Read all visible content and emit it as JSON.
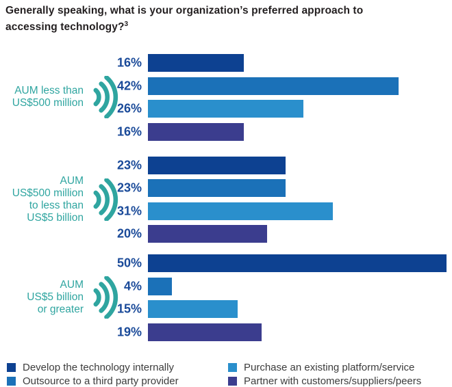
{
  "title": {
    "text": "Generally speaking, what is your organization’s preferred approach to accessing technology?",
    "footnote_marker": "3"
  },
  "colors": {
    "develop_navy": "#0D4191",
    "outsource_blue": "#1B71B8",
    "purchase_light_blue": "#2A8FCC",
    "partner_purple": "#3B3D8E",
    "teal_accent": "#2FA5A0",
    "percent_text": "#1A4A99",
    "title_text": "#231F20",
    "legend_text": "#3C3C3C"
  },
  "chart_data": {
    "type": "bar",
    "orientation": "horizontal",
    "unit": "%",
    "xlim": [
      0,
      51
    ],
    "grid": false,
    "legend_position": "bottom",
    "series_names": [
      "Develop the technology internally",
      "Outsource to a third party provider",
      "Purchase an existing platform/service",
      "Partner with customers/suppliers/peers"
    ],
    "groups": [
      {
        "label_lines": [
          "AUM less than",
          "US$500 million"
        ],
        "values": [
          16,
          42,
          26,
          16
        ],
        "display_values": [
          "16%",
          "42%",
          "26%",
          "16%"
        ]
      },
      {
        "label_lines": [
          "AUM",
          "US$500 million",
          "to less than",
          "US$5 billion"
        ],
        "values": [
          23,
          23,
          31,
          20
        ],
        "display_values": [
          "23%",
          "23%",
          "31%",
          "20%"
        ]
      },
      {
        "label_lines": [
          "AUM",
          "US$5 billion",
          "or greater"
        ],
        "values": [
          50,
          4,
          15,
          19
        ],
        "display_values": [
          "50%",
          "4%",
          "15%",
          "19%"
        ]
      }
    ]
  },
  "legend": {
    "items": [
      {
        "label": "Develop the technology internally",
        "color": "#0D4191"
      },
      {
        "label": "Outsource to a third party provider",
        "color": "#1B71B8"
      },
      {
        "label": "Purchase an existing platform/service",
        "color": "#2A8FCC"
      },
      {
        "label": "Partner with customers/suppliers/peers",
        "color": "#3B3D8E"
      }
    ]
  }
}
